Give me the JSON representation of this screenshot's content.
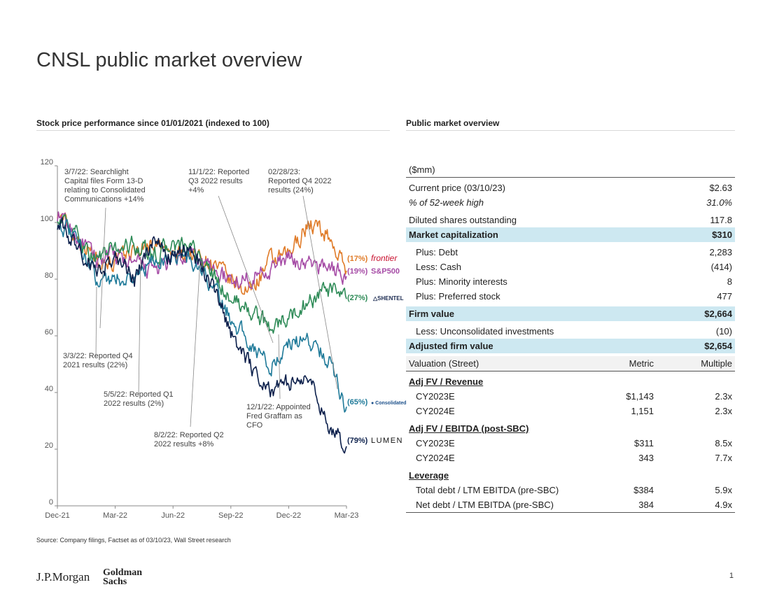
{
  "title": "CNSL public market overview",
  "left_section_title": "Stock price performance since 01/01/2021 (indexed to 100)",
  "right_section_title": "Public market overview",
  "source": "Source: Company filings, Factset as of 03/10/23, Wall Street research",
  "footer": {
    "jpm": "J.P.Morgan",
    "gs_line1": "Goldman",
    "gs_line2": "Sachs",
    "page": "1"
  },
  "colors": {
    "frontier": "#e07b28",
    "sp500": "#a64ca6",
    "shentel": "#2e8b57",
    "consolidated": "#1f7a99",
    "lumen": "#0b1f4b",
    "highlight": "#cde8f1"
  },
  "chart_data": {
    "type": "line",
    "ylim": [
      0,
      120
    ],
    "yticks": [
      "0",
      "20",
      "40",
      "60",
      "80",
      "100",
      "120"
    ],
    "xticks": [
      "Dec-21",
      "Mar-22",
      "Jun-22",
      "Sep-22",
      "Dec-22",
      "Mar-23"
    ],
    "x_months": [
      0,
      1,
      2,
      3,
      4,
      5,
      6,
      7,
      8,
      9,
      10,
      11,
      12,
      13,
      14,
      15
    ],
    "series": [
      {
        "name": "Frontier",
        "label": "(17%)",
        "logo": "frontier",
        "color": "#e07b28",
        "values": [
          104,
          95,
          88,
          86,
          90,
          93,
          88,
          89,
          86,
          79,
          76,
          86,
          88,
          100,
          96,
          83
        ]
      },
      {
        "name": "S&P500",
        "label": "(19%)",
        "logo": "S&P500",
        "color": "#a64ca6",
        "values": [
          103,
          95,
          87,
          88,
          85,
          83,
          86,
          88,
          84,
          79,
          81,
          84,
          87,
          85,
          85,
          81
        ]
      },
      {
        "name": "Shentel",
        "label": "(27%)",
        "logo": "SHENTEL",
        "color": "#2e8b57",
        "values": [
          103,
          95,
          87,
          91,
          92,
          88,
          92,
          90,
          82,
          73,
          69,
          63,
          66,
          72,
          76,
          73
        ]
      },
      {
        "name": "Consolidated",
        "label": "(65%)",
        "logo": "Consolidated",
        "color": "#1f7a99",
        "values": [
          101,
          93,
          81,
          80,
          81,
          86,
          89,
          86,
          78,
          66,
          58,
          49,
          57,
          59,
          53,
          35
        ]
      },
      {
        "name": "Lumen",
        "label": "(79%)",
        "logo": "LUMEN",
        "color": "#0b1f4b",
        "values": [
          100,
          92,
          82,
          88,
          80,
          93,
          87,
          91,
          78,
          61,
          50,
          41,
          43,
          45,
          30,
          21
        ]
      }
    ],
    "annotations": [
      {
        "lines": [
          "3/7/22: Searchlight",
          "Capital files Form 13-D",
          "relating to Consolidated",
          "Communications +14%"
        ]
      },
      {
        "lines": [
          "11/1/22: Reported",
          "Q3 2022 results",
          "+4%"
        ]
      },
      {
        "lines": [
          "02/28/23:",
          "Reported Q4 2022",
          "results (24%)"
        ]
      },
      {
        "lines": [
          "3/3/22: Reported Q4",
          "2021 results (22%)"
        ]
      },
      {
        "lines": [
          "5/5/22: Reported Q1",
          "2022 results (2%)"
        ]
      },
      {
        "lines": [
          "12/1/22: Appointed",
          "Fred Graffam as",
          "CFO"
        ]
      },
      {
        "lines": [
          "8/2/22: Reported Q2",
          "2022 results +8%"
        ]
      }
    ]
  },
  "table": {
    "units": "($mm)",
    "col_metric": "Metric",
    "col_multiple": "Multiple",
    "valuation_header": "Valuation (Street)",
    "rows_top": [
      {
        "label": "Current price (03/10/23)",
        "value": "$2.63"
      },
      {
        "label": "% of 52-week high",
        "value": "31.0%"
      },
      {
        "label": "Diluted shares outstanding",
        "value": "117.8"
      },
      {
        "label": "Market capitalization",
        "value": "$310"
      },
      {
        "label": "Plus: Debt",
        "value": "2,283"
      },
      {
        "label": "Less: Cash",
        "value": "(414)"
      },
      {
        "label": "Plus: Minority interests",
        "value": "8"
      },
      {
        "label": "Plus: Preferred stock",
        "value": "477"
      },
      {
        "label": "Firm value",
        "value": "$2,664"
      },
      {
        "label": "Less: Unconsolidated investments",
        "value": "(10)"
      },
      {
        "label": "Adjusted firm value",
        "value": "$2,654"
      }
    ],
    "groups": [
      {
        "title": "Adj FV / Revenue",
        "rows": [
          {
            "label": "CY2023E",
            "metric": "$1,143",
            "multiple": "2.3x"
          },
          {
            "label": "CY2024E",
            "metric": "1,151",
            "multiple": "2.3x"
          }
        ]
      },
      {
        "title": "Adj FV / EBITDA (post-SBC)",
        "rows": [
          {
            "label": "CY2023E",
            "metric": "$311",
            "multiple": "8.5x"
          },
          {
            "label": "CY2024E",
            "metric": "343",
            "multiple": "7.7x"
          }
        ]
      },
      {
        "title": "Leverage",
        "rows": [
          {
            "label": "Total debt / LTM EBITDA (pre-SBC)",
            "metric": "$384",
            "multiple": "5.9x"
          },
          {
            "label": "Net debt / LTM EBITDA (pre-SBC)",
            "metric": "384",
            "multiple": "4.9x"
          }
        ]
      }
    ]
  }
}
